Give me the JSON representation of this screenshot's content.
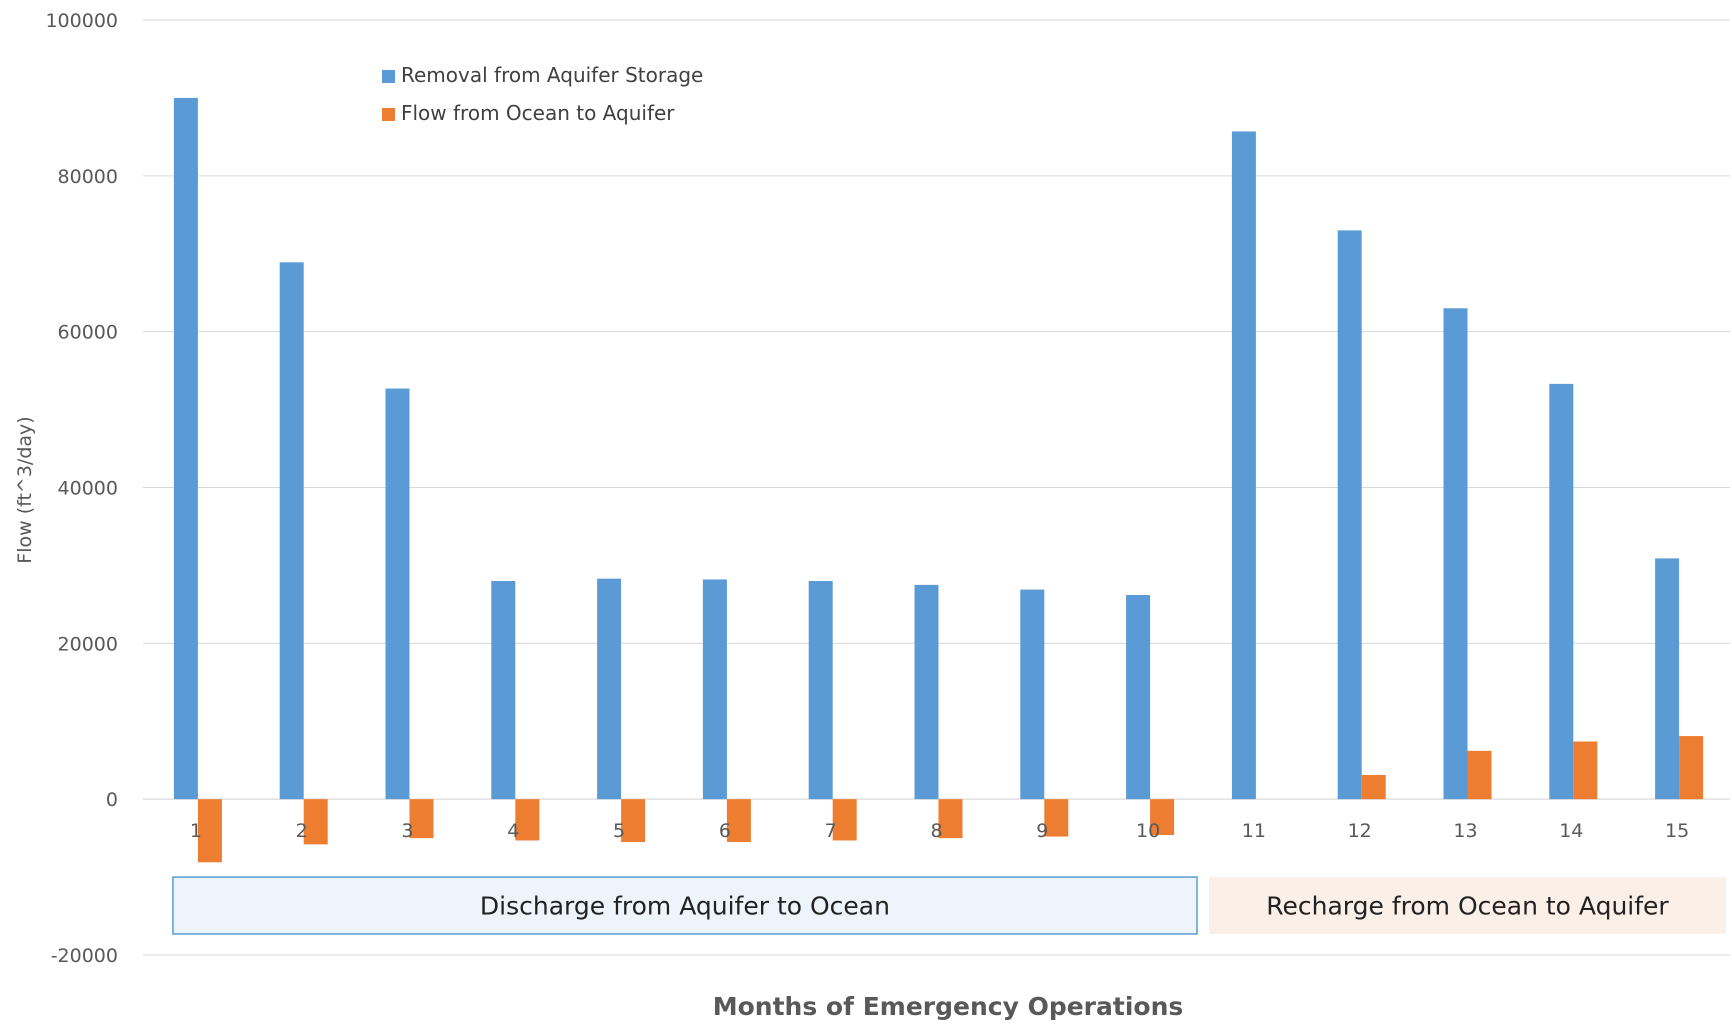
{
  "chart_data": {
    "type": "bar",
    "categories": [
      "1",
      "2",
      "3",
      "4",
      "5",
      "6",
      "7",
      "8",
      "9",
      "10",
      "11",
      "12",
      "13",
      "14",
      "15"
    ],
    "series": [
      {
        "name": "Removal from Aquifer Storage",
        "color": "#5B9BD5",
        "values": [
          90000,
          68900,
          52700,
          28000,
          28300,
          28200,
          28000,
          27500,
          26900,
          26200,
          85700,
          73000,
          63000,
          53300,
          30900
        ]
      },
      {
        "name": "Flow from Ocean to Aquifer",
        "color": "#ED7D31",
        "values": [
          -8100,
          -5800,
          -5000,
          -5300,
          -5500,
          -5500,
          -5300,
          -5000,
          -4800,
          -4600,
          0,
          3100,
          6200,
          7400,
          8100
        ]
      }
    ],
    "title": "",
    "xlabel": "Months of Emergency Operations",
    "ylabel": "Flow (ft^3/day)",
    "ylim": [
      -20000,
      100000
    ],
    "yticks": [
      "-20000",
      "0",
      "20000",
      "40000",
      "60000",
      "80000",
      "100000"
    ],
    "grid": true,
    "legend_position": "top-left",
    "annotations": [
      {
        "text": "Discharge from Aquifer to Ocean",
        "from_category": 1,
        "to_category": 10,
        "fill": "#EEF4FB",
        "border": "#5B9BD5"
      },
      {
        "text": "Recharge from Ocean to Aquifer",
        "from_category": 11,
        "to_category": 15,
        "fill": "#FBF0E8",
        "border": ""
      }
    ]
  }
}
